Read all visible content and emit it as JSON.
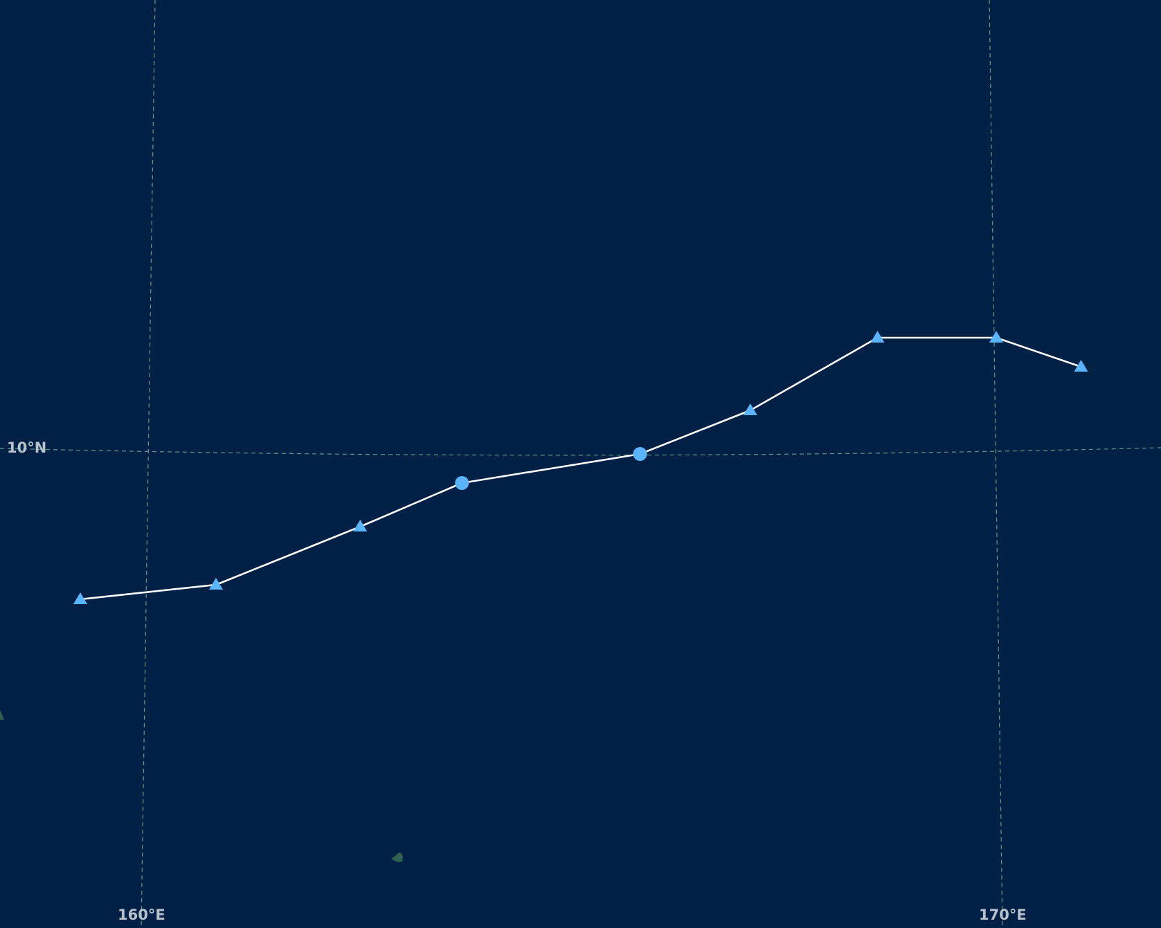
{
  "map": {
    "background_color": "#002145",
    "graticule_color": "#5f9a8a",
    "land_color": "#2f6050",
    "track_color": "#ffffff",
    "marker_color": "#5ab4ff",
    "graticule_labels": {
      "lat_10n": "10°N",
      "lon_160e": "160°E",
      "lon_170e": "170°E"
    },
    "track_points": [
      {
        "lon": 159.2,
        "lat": 9.0,
        "marker": "triangle"
      },
      {
        "lon": 160.8,
        "lat": 9.1,
        "marker": "triangle"
      },
      {
        "lon": 162.5,
        "lat": 9.5,
        "marker": "triangle"
      },
      {
        "lon": 163.7,
        "lat": 9.8,
        "marker": "circle"
      },
      {
        "lon": 165.8,
        "lat": 10.0,
        "marker": "circle"
      },
      {
        "lon": 167.1,
        "lat": 10.3,
        "marker": "triangle"
      },
      {
        "lon": 168.6,
        "lat": 10.8,
        "marker": "triangle"
      },
      {
        "lon": 170.0,
        "lat": 10.8,
        "marker": "triangle"
      },
      {
        "lon": 171.0,
        "lat": 10.6,
        "marker": "triangle"
      }
    ]
  }
}
